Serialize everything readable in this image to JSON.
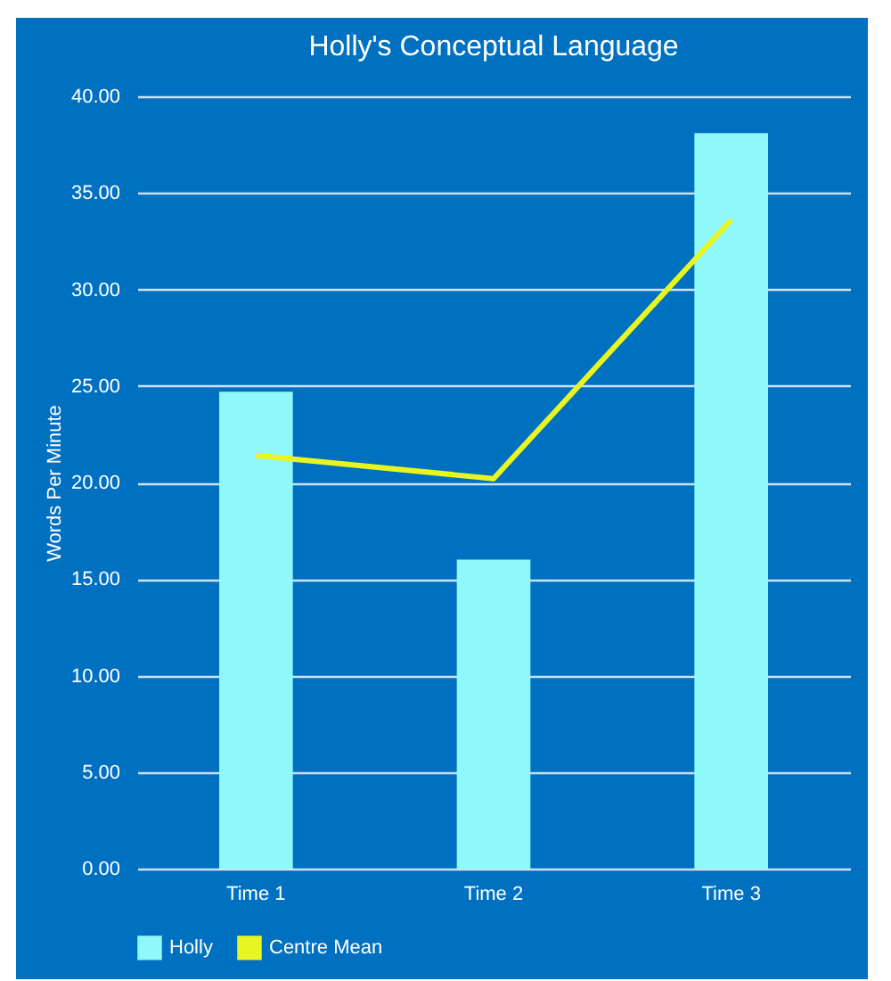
{
  "chart_data": {
    "type": "bar",
    "title": "Holly's Conceptual Language",
    "ylabel": "Words Per Minute",
    "categories": [
      "Time 1",
      "Time 2",
      "Time 3"
    ],
    "series": [
      {
        "name": "Holly",
        "color": "#8ef8fb",
        "values": [
          24.7,
          16.0,
          38.1
        ]
      },
      {
        "name": "Centre Mean",
        "type": "line",
        "color": "#e8f520",
        "values": [
          21.4,
          20.2,
          33.6
        ]
      }
    ],
    "ylim": [
      0,
      40
    ],
    "yticks": [
      {
        "value": 0,
        "label": "0.00"
      },
      {
        "value": 5,
        "label": "5.00"
      },
      {
        "value": 10,
        "label": "10.00"
      },
      {
        "value": 15,
        "label": "15.00"
      },
      {
        "value": 20,
        "label": "20.00"
      },
      {
        "value": 25,
        "label": "25.00"
      },
      {
        "value": 30,
        "label": "30.00"
      },
      {
        "value": 35,
        "label": "35.00"
      },
      {
        "value": 40,
        "label": "40.00"
      }
    ],
    "grid": true,
    "legend": "bottom"
  }
}
